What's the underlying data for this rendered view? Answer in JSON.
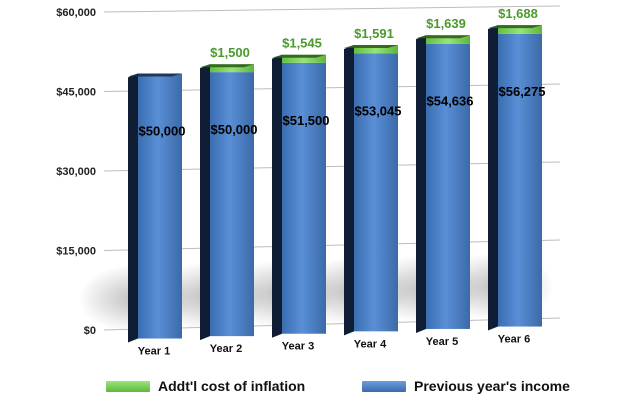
{
  "chart_data": {
    "type": "bar",
    "stacked": true,
    "categories": [
      "Year 1",
      "Year 2",
      "Year 3",
      "Year 4",
      "Year 5",
      "Year 6"
    ],
    "series": [
      {
        "name": "Previous year's income",
        "color": "#4a7fc4",
        "values": [
          50000,
          50000,
          51500,
          53045,
          54636,
          56275
        ],
        "labels": [
          "$50,000",
          "$50,000",
          "$51,500",
          "$53,045",
          "$54,636",
          "$56,275"
        ]
      },
      {
        "name": "Addt'l cost of inflation",
        "color": "#7fd35a",
        "values": [
          0,
          1500,
          1545,
          1591,
          1639,
          1688
        ],
        "labels": [
          "",
          "$1,500",
          "$1,545",
          "$1,591",
          "$1,639",
          "$1,688"
        ]
      }
    ],
    "yticks": [
      {
        "value": 60000,
        "label": "$60,000"
      },
      {
        "value": 45000,
        "label": "$45,000"
      },
      {
        "value": 30000,
        "label": "$30,000"
      },
      {
        "value": 15000,
        "label": "$15,000"
      },
      {
        "value": 0,
        "label": "$0"
      }
    ],
    "ylim": [
      0,
      60000
    ],
    "grid": true,
    "legend_position": "bottom"
  }
}
